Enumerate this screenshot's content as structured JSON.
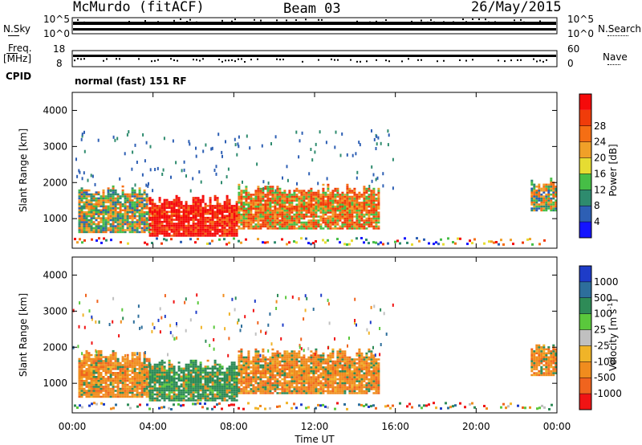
{
  "header": {
    "station": "McMurdo (fitACF)",
    "beam": "Beam 03",
    "date": "26/May/2015"
  },
  "top_panels": {
    "nsky_label": "N.Sky",
    "nsearch_label": "N.Search",
    "noise_ticks_left": [
      "10^5",
      "10^0"
    ],
    "noise_ticks_right": [
      "10^5",
      "10^0"
    ],
    "freq_label": "Freq.",
    "freq_unit": "[MHz]",
    "freq_ticks": [
      "18",
      "8"
    ],
    "nave_label": "Nave",
    "nave_ticks": [
      "60",
      "0"
    ],
    "cpid_label": "CPID",
    "cpid_value": "normal (fast) 151 RF"
  },
  "chart_data": [
    {
      "type": "heatmap",
      "name": "power",
      "ylabel": "Slant Range [km]",
      "xlabel": "",
      "yticks": [
        "1000",
        "2000",
        "3000",
        "4000"
      ],
      "ylim": [
        180,
        4500
      ],
      "xlim": [
        0,
        24
      ],
      "colorbar": {
        "label": "Power [dB]",
        "ticks": [
          "4",
          "8",
          "12",
          "16",
          "20",
          "24",
          "28"
        ],
        "colors": [
          "#1414ff",
          "#2d5fb4",
          "#2e8b6e",
          "#46be46",
          "#e6dc32",
          "#f0a028",
          "#f56e14",
          "#f03c0a",
          "#f50a0a"
        ]
      },
      "regions": [
        {
          "t_start": 0.3,
          "t_end": 3.8,
          "r_lo": 600,
          "r_hi": 1750,
          "level": "mixed"
        },
        {
          "t_start": 3.8,
          "t_end": 8.2,
          "r_lo": 500,
          "r_hi": 1500,
          "level": "high"
        },
        {
          "t_start": 8.2,
          "t_end": 15.2,
          "r_lo": 700,
          "r_hi": 1800,
          "level": "mid-high"
        },
        {
          "t_start": 22.7,
          "t_end": 24,
          "r_lo": 1200,
          "r_hi": 2000,
          "level": "mixed"
        }
      ]
    },
    {
      "type": "heatmap",
      "name": "velocity",
      "ylabel": "Slant Range [km]",
      "xlabel": "Time UT",
      "xticks": [
        "00:00",
        "04:00",
        "08:00",
        "12:00",
        "16:00",
        "20:00",
        "00:00"
      ],
      "yticks": [
        "1000",
        "2000",
        "3000",
        "4000"
      ],
      "ylim": [
        180,
        4500
      ],
      "xlim": [
        0,
        24
      ],
      "colorbar": {
        "label": "Velocity [m s^-1]",
        "ticks": [
          "1000",
          "500",
          "100",
          "25",
          "-25",
          "-100",
          "-500",
          "-1000"
        ],
        "colors": [
          "#1e3cc8",
          "#2d6e9b",
          "#2e8b57",
          "#5ac83c",
          "#c0c0c0",
          "#f0b428",
          "#f08c1e",
          "#f0641e",
          "#f01414"
        ]
      },
      "regions": [
        {
          "t_start": 0.3,
          "t_end": 3.8,
          "r_lo": 600,
          "r_hi": 1750,
          "level": "negative"
        },
        {
          "t_start": 3.8,
          "t_end": 8.2,
          "r_lo": 500,
          "r_hi": 1500,
          "level": "slow"
        },
        {
          "t_start": 8.2,
          "t_end": 15.2,
          "r_lo": 700,
          "r_hi": 1800,
          "level": "negative"
        },
        {
          "t_start": 22.7,
          "t_end": 24,
          "r_lo": 1200,
          "r_hi": 2000,
          "level": "negative"
        }
      ]
    }
  ]
}
